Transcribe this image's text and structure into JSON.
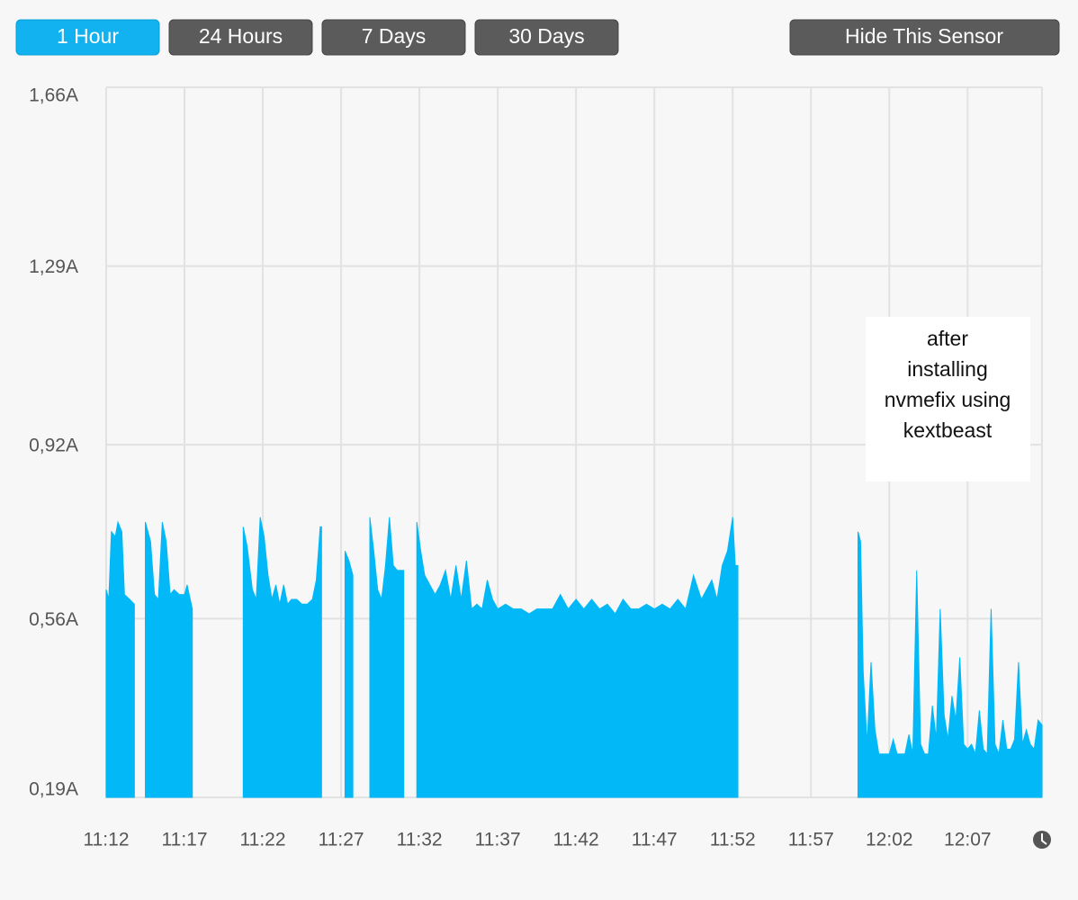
{
  "buttons": [
    "1 Hour",
    "24 Hours",
    "7 Days",
    "30 Days"
  ],
  "hide_button": "Hide This Sensor",
  "chart_data": {
    "type": "area",
    "color": "#03b8f7",
    "grid": true,
    "annotation": [
      "after",
      "installing",
      "nvmefix using",
      "kextbeast"
    ],
    "ylim": [
      0.19,
      1.66
    ],
    "yticks": [
      {
        "value": 0.19,
        "label": "0,19A"
      },
      {
        "value": 0.56,
        "label": "0,56A"
      },
      {
        "value": 0.92,
        "label": "0,92A"
      },
      {
        "value": 1.29,
        "label": "1,29A"
      },
      {
        "value": 1.66,
        "label": "1,66A"
      }
    ],
    "xlim": [
      "11:12:00",
      "12:11:45"
    ],
    "xticks": [
      "11:12",
      "11:17",
      "11:22",
      "11:27",
      "11:32",
      "11:37",
      "11:42",
      "11:47",
      "11:52",
      "11:57",
      "12:02",
      "12:07"
    ],
    "x": [
      "11:12:00",
      "11:12:10",
      "11:12:20",
      "11:12:35",
      "11:12:45",
      "11:13:00",
      "11:13:10",
      "11:13:30",
      "11:13:48",
      "11:14:10",
      "11:14:30",
      "11:14:50",
      "11:15:05",
      "11:15:20",
      "11:15:35",
      "11:15:50",
      "11:16:05",
      "11:16:20",
      "11:16:40",
      "11:17:00",
      "11:17:10",
      "11:17:30",
      "11:19:00",
      "11:20:45",
      "11:21:00",
      "11:21:20",
      "11:21:35",
      "11:21:50",
      "11:22:05",
      "11:22:20",
      "11:22:35",
      "11:22:50",
      "11:23:05",
      "11:23:20",
      "11:23:35",
      "11:23:50",
      "11:24:10",
      "11:24:30",
      "11:24:50",
      "11:25:10",
      "11:25:25",
      "11:25:40",
      "11:25:45",
      "11:26:30",
      "11:27:15",
      "11:27:30",
      "11:27:45",
      "11:28:20",
      "11:28:50",
      "11:29:05",
      "11:29:20",
      "11:29:35",
      "11:29:50",
      "11:30:05",
      "11:30:20",
      "11:30:35",
      "11:31:00",
      "11:31:25",
      "11:31:50",
      "11:32:05",
      "11:32:20",
      "11:32:40",
      "11:33:00",
      "11:33:20",
      "11:33:40",
      "11:34:00",
      "11:34:20",
      "11:34:40",
      "11:35:00",
      "11:35:20",
      "11:35:40",
      "11:36:00",
      "11:36:20",
      "11:36:40",
      "11:37:00",
      "11:37:30",
      "11:38:00",
      "11:38:30",
      "11:39:00",
      "11:39:30",
      "11:40:00",
      "11:40:30",
      "11:41:00",
      "11:41:30",
      "11:42:00",
      "11:42:30",
      "11:43:00",
      "11:43:30",
      "11:44:00",
      "11:44:30",
      "11:45:00",
      "11:45:30",
      "11:46:00",
      "11:46:30",
      "11:47:00",
      "11:47:30",
      "11:48:00",
      "11:48:30",
      "11:49:00",
      "11:49:30",
      "11:50:00",
      "11:50:20",
      "11:50:40",
      "11:51:00",
      "11:51:20",
      "11:51:40",
      "11:52:00",
      "11:52:10",
      "11:52:20",
      "11:56:00",
      "12:00:00",
      "12:00:10",
      "12:00:20",
      "12:00:35",
      "12:00:50",
      "12:01:05",
      "12:01:20",
      "12:01:40",
      "12:02:00",
      "12:02:15",
      "12:02:30",
      "12:03:00",
      "12:03:15",
      "12:03:30",
      "12:03:45",
      "12:04:00",
      "12:04:15",
      "12:04:30",
      "12:04:45",
      "12:05:00",
      "12:05:15",
      "12:05:30",
      "12:05:45",
      "12:06:00",
      "12:06:15",
      "12:06:30",
      "12:06:45",
      "12:07:00",
      "12:07:15",
      "12:07:30",
      "12:07:45",
      "12:08:00",
      "12:08:15",
      "12:08:30",
      "12:08:45",
      "12:09:00",
      "12:09:15",
      "12:09:30",
      "12:09:45",
      "12:10:00",
      "12:10:15",
      "12:10:30",
      "12:10:45",
      "12:11:00",
      "12:11:15",
      "12:11:30",
      "12:11:45"
    ],
    "values": [
      0.62,
      0.6,
      0.74,
      0.73,
      0.76,
      0.74,
      0.61,
      0.6,
      0.59,
      null,
      0.76,
      0.72,
      0.61,
      0.6,
      0.76,
      0.72,
      0.61,
      0.62,
      0.61,
      0.61,
      0.63,
      0.58,
      null,
      0.75,
      0.71,
      0.62,
      0.6,
      0.77,
      0.73,
      0.65,
      0.6,
      0.63,
      0.59,
      0.63,
      0.59,
      0.6,
      0.6,
      0.59,
      0.59,
      0.6,
      0.64,
      0.75,
      0.75,
      null,
      0.7,
      0.68,
      0.65,
      null,
      0.77,
      0.7,
      0.62,
      0.6,
      0.67,
      0.77,
      0.67,
      0.66,
      0.66,
      null,
      0.76,
      0.7,
      0.65,
      0.63,
      0.61,
      0.63,
      0.66,
      0.6,
      0.67,
      0.6,
      0.68,
      0.58,
      0.59,
      0.58,
      0.64,
      0.6,
      0.58,
      0.59,
      0.58,
      0.58,
      0.57,
      0.58,
      0.58,
      0.58,
      0.61,
      0.58,
      0.6,
      0.58,
      0.6,
      0.58,
      0.59,
      0.57,
      0.6,
      0.58,
      0.58,
      0.59,
      0.58,
      0.59,
      0.58,
      0.6,
      0.58,
      0.65,
      0.6,
      0.62,
      0.64,
      0.6,
      0.67,
      0.7,
      0.77,
      0.67,
      0.67,
      null,
      0.74,
      0.72,
      0.45,
      0.3,
      0.47,
      0.33,
      0.28,
      0.28,
      0.28,
      0.31,
      0.28,
      0.28,
      0.32,
      0.28,
      0.66,
      0.3,
      0.28,
      0.28,
      0.38,
      0.31,
      0.58,
      0.36,
      0.31,
      0.4,
      0.35,
      0.48,
      0.3,
      0.29,
      0.3,
      0.28,
      0.37,
      0.29,
      0.28,
      0.58,
      0.3,
      0.28,
      0.35,
      0.29,
      0.29,
      0.31,
      0.47,
      0.3,
      0.33,
      0.3,
      0.29,
      0.35,
      0.34
    ]
  }
}
